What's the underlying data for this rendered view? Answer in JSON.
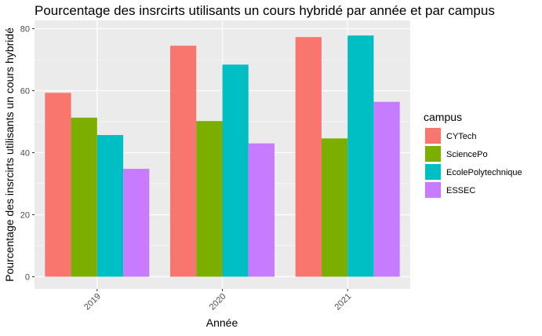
{
  "chart_data": {
    "type": "bar",
    "title": "Pourcentage des insrcirts utilisants un cours hybridé par année et par campus",
    "xlabel": "Année",
    "ylabel": "Pourcentage des insrcirts utilisants un cours hybridé",
    "categories": [
      "2019",
      "2020",
      "2021"
    ],
    "ylim": [
      0,
      80
    ],
    "yticks": [
      0,
      20,
      40,
      60,
      80
    ],
    "grid": true,
    "legend": {
      "title": "campus",
      "position": "right"
    },
    "series": [
      {
        "name": "CYTech",
        "color": "#F8766D",
        "values": [
          59.3,
          74.5,
          77.3
        ]
      },
      {
        "name": "SciencePo",
        "color": "#7CAE00",
        "values": [
          51.3,
          50.2,
          44.6
        ]
      },
      {
        "name": "EcolePolytechnique",
        "color": "#00BFC4",
        "values": [
          45.7,
          68.4,
          77.8
        ]
      },
      {
        "name": "ESSEC",
        "color": "#C77CFF",
        "values": [
          34.8,
          43.0,
          56.4
        ]
      }
    ]
  }
}
